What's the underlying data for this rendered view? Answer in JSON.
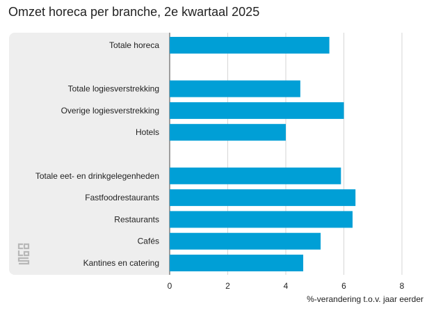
{
  "title": "Omzet horeca per branche, 2e kwartaal 2025",
  "chart_data": {
    "type": "bar",
    "orientation": "horizontal",
    "title": "Omzet horeca per branche, 2e kwartaal 2025",
    "xlabel": "%-verandering t.o.v. jaar eerder",
    "ylabel": "",
    "xlim": [
      0,
      8
    ],
    "x_ticks": [
      0,
      2,
      4,
      6,
      8
    ],
    "grid": true,
    "bar_color": "#009fd6",
    "categories": [
      "Totale horeca",
      "",
      "Totale logiesverstrekking",
      "Overige logiesverstrekking",
      "Hotels",
      "",
      "Totale eet- en drinkgelegenheden",
      "Fastfoodrestaurants",
      "Restaurants",
      "Cafés",
      "Kantines en catering"
    ],
    "values": [
      5.5,
      null,
      4.5,
      6.0,
      4.0,
      null,
      5.9,
      6.4,
      6.3,
      5.2,
      4.6
    ]
  },
  "logo": {
    "name": "cbs-logo"
  }
}
